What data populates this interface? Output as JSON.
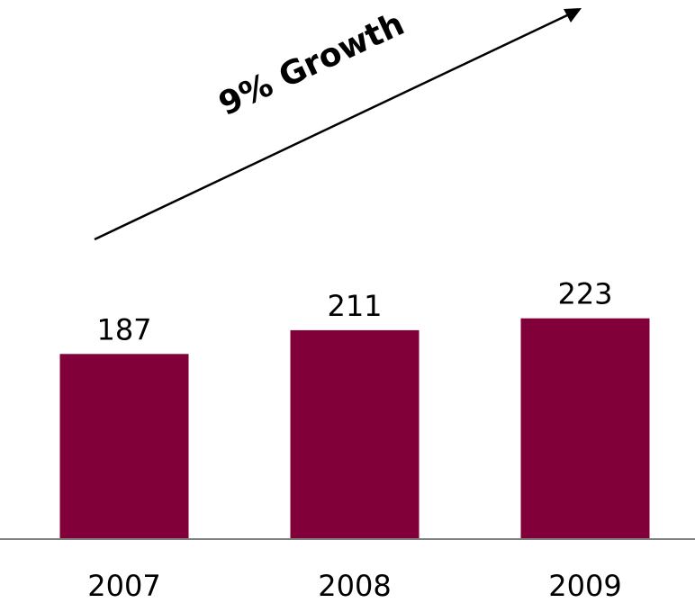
{
  "chart_data": {
    "type": "bar",
    "categories": [
      "2007",
      "2008",
      "2009"
    ],
    "values": [
      187,
      211,
      223
    ],
    "title": "",
    "xlabel": "",
    "ylabel": "",
    "ylim": [
      0,
      240
    ],
    "grid": false,
    "legend": "none",
    "data_labels": true,
    "annotation": {
      "text": "9% Growth",
      "arrow": "up-right"
    },
    "colors": {
      "bar": "#82003A",
      "axis": "#808080",
      "text": "#000000",
      "arrow": "#000000"
    }
  }
}
